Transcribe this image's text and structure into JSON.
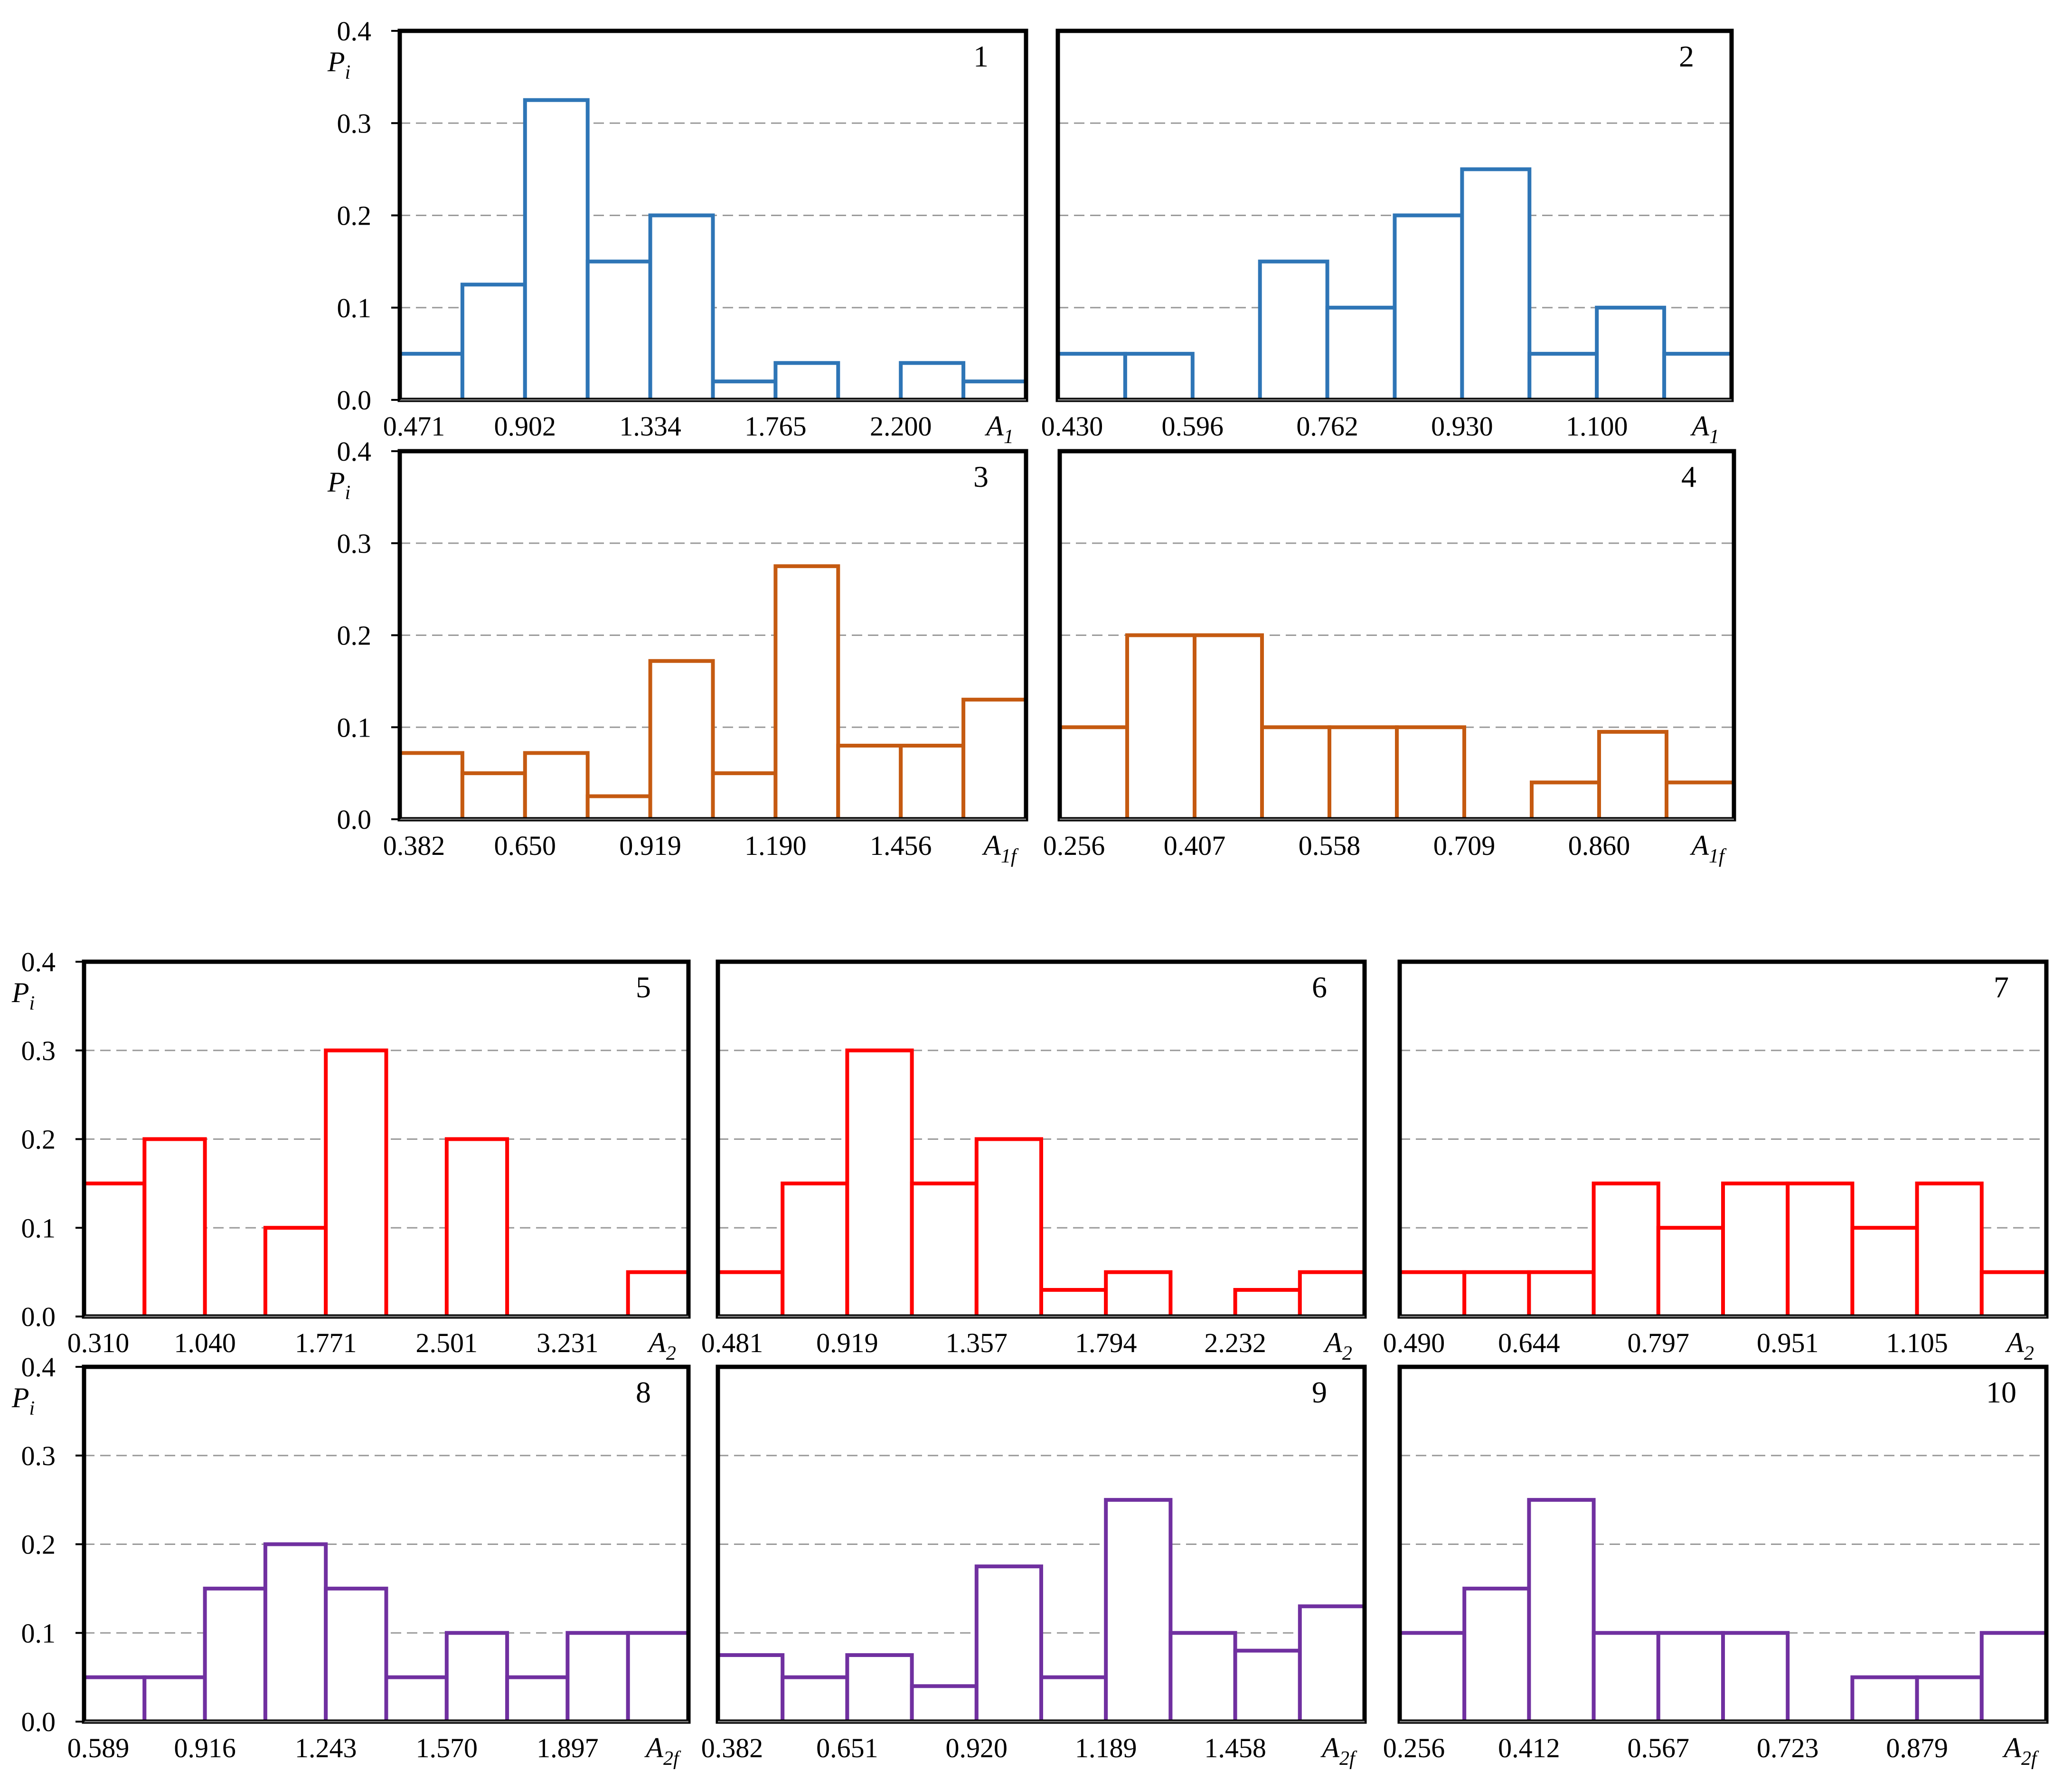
{
  "chart_data": [
    {
      "type": "bar",
      "id": "1",
      "panel_number": "1",
      "color": "#2e75b6",
      "ylabel_main": "P",
      "ylabel_sub": "i",
      "xlabel_main": "A",
      "xlabel_sub": "1",
      "ylim": [
        0,
        0.4
      ],
      "yticks": [
        "0.0",
        "0.1",
        "0.2",
        "0.3",
        "0.4"
      ],
      "xtick_labels": [
        "0.471",
        "0.902",
        "1.334",
        "1.765",
        "2.200"
      ],
      "values": [
        0.05,
        0.125,
        0.325,
        0.15,
        0.2,
        0.02,
        0.04,
        0.0,
        0.04,
        0.02
      ]
    },
    {
      "type": "bar",
      "id": "2",
      "panel_number": "2",
      "color": "#2e75b6",
      "xlabel_main": "A",
      "xlabel_sub": "1",
      "ylim": [
        0,
        0.4
      ],
      "xtick_labels": [
        "0.430",
        "0.596",
        "0.762",
        "0.930",
        "1.100"
      ],
      "values": [
        0.05,
        0.05,
        0.0,
        0.15,
        0.1,
        0.2,
        0.25,
        0.05,
        0.1,
        0.05
      ]
    },
    {
      "type": "bar",
      "id": "3",
      "panel_number": "3",
      "color": "#c55a11",
      "ylabel_main": "P",
      "ylabel_sub": "i",
      "xlabel_main": "A",
      "xlabel_sub": "1f",
      "ylim": [
        0,
        0.4
      ],
      "yticks": [
        "0.0",
        "0.1",
        "0.2",
        "0.3",
        "0.4"
      ],
      "xtick_labels": [
        "0.382",
        "0.650",
        "0.919",
        "1.190",
        "1.456"
      ],
      "values": [
        0.072,
        0.05,
        0.072,
        0.025,
        0.172,
        0.05,
        0.275,
        0.08,
        0.08,
        0.13
      ]
    },
    {
      "type": "bar",
      "id": "4",
      "panel_number": "4",
      "color": "#c55a11",
      "xlabel_main": "A",
      "xlabel_sub": "1f",
      "ylim": [
        0,
        0.4
      ],
      "xtick_labels": [
        "0.256",
        "0.407",
        "0.558",
        "0.709",
        "0.860"
      ],
      "values": [
        0.1,
        0.2,
        0.2,
        0.1,
        0.1,
        0.1,
        0.0,
        0.04,
        0.095,
        0.04
      ]
    },
    {
      "type": "bar",
      "id": "5",
      "panel_number": "5",
      "color": "#ff0000",
      "ylabel_main": "P",
      "ylabel_sub": "i",
      "xlabel_main": "A",
      "xlabel_sub": "2",
      "ylim": [
        0,
        0.4
      ],
      "yticks": [
        "0.0",
        "0.1",
        "0.2",
        "0.3",
        "0.4"
      ],
      "xtick_labels": [
        "0.310",
        "1.040",
        "1.771",
        "2.501",
        "3.231"
      ],
      "values": [
        0.15,
        0.2,
        0.0,
        0.1,
        0.3,
        0.0,
        0.2,
        0.0,
        0.0,
        0.05
      ]
    },
    {
      "type": "bar",
      "id": "6",
      "panel_number": "6",
      "color": "#ff0000",
      "xlabel_main": "A",
      "xlabel_sub": "2",
      "ylim": [
        0,
        0.4
      ],
      "xtick_labels": [
        "0.481",
        "0.919",
        "1.357",
        "1.794",
        "2.232"
      ],
      "values": [
        0.05,
        0.15,
        0.3,
        0.15,
        0.2,
        0.03,
        0.05,
        0.0,
        0.03,
        0.05
      ]
    },
    {
      "type": "bar",
      "id": "7",
      "panel_number": "7",
      "color": "#ff0000",
      "xlabel_main": "A",
      "xlabel_sub": "2",
      "ylim": [
        0,
        0.4
      ],
      "xtick_labels": [
        "0.490",
        "0.644",
        "0.797",
        "0.951",
        "1.105"
      ],
      "values": [
        0.05,
        0.05,
        0.05,
        0.15,
        0.1,
        0.15,
        0.15,
        0.1,
        0.15,
        0.05
      ]
    },
    {
      "type": "bar",
      "id": "8",
      "panel_number": "8",
      "color": "#7030a0",
      "ylabel_main": "P",
      "ylabel_sub": "i",
      "xlabel_main": "A",
      "xlabel_sub": "2f",
      "ylim": [
        0,
        0.4
      ],
      "yticks": [
        "0.0",
        "0.1",
        "0.2",
        "0.3",
        "0.4"
      ],
      "xtick_labels": [
        "0.589",
        "0.916",
        "1.243",
        "1.570",
        "1.897"
      ],
      "values": [
        0.05,
        0.05,
        0.15,
        0.2,
        0.15,
        0.05,
        0.1,
        0.05,
        0.1,
        0.1
      ]
    },
    {
      "type": "bar",
      "id": "9",
      "panel_number": "9",
      "color": "#7030a0",
      "xlabel_main": "A",
      "xlabel_sub": "2f",
      "ylim": [
        0,
        0.4
      ],
      "xtick_labels": [
        "0.382",
        "0.651",
        "0.920",
        "1.189",
        "1.458"
      ],
      "values": [
        0.075,
        0.05,
        0.075,
        0.04,
        0.175,
        0.05,
        0.25,
        0.1,
        0.08,
        0.13
      ]
    },
    {
      "type": "bar",
      "id": "10",
      "panel_number": "10",
      "color": "#7030a0",
      "xlabel_main": "A",
      "xlabel_sub": "2f",
      "ylim": [
        0,
        0.4
      ],
      "xtick_labels": [
        "0.256",
        "0.412",
        "0.567",
        "0.723",
        "0.879"
      ],
      "values": [
        0.1,
        0.15,
        0.25,
        0.1,
        0.1,
        0.1,
        0.0,
        0.05,
        0.05,
        0.1
      ]
    }
  ]
}
